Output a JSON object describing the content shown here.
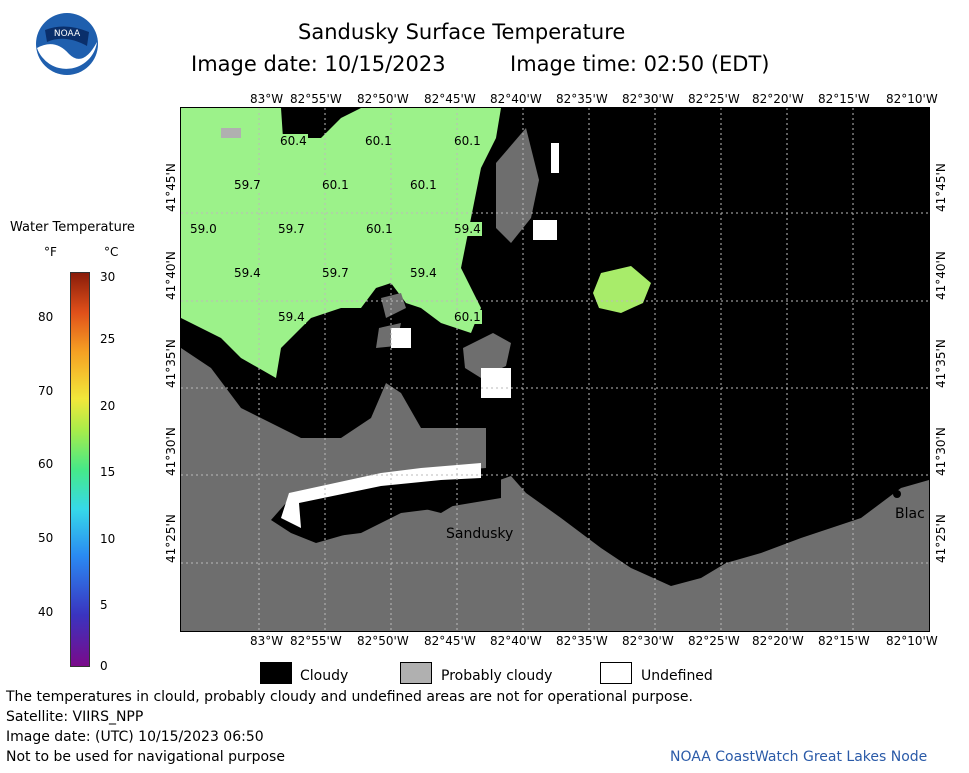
{
  "header": {
    "title": "Sandusky Surface Temperature",
    "image_date": "Image date: 10/15/2023",
    "image_time": "Image time: 02:50 (EDT)"
  },
  "logo": {
    "text": "NOAA"
  },
  "colorbar": {
    "title": "Water Temperature",
    "unit_f": "°F",
    "unit_c": "°C",
    "f_ticks": [
      "80",
      "70",
      "60",
      "50",
      "40"
    ],
    "c_ticks": [
      "30",
      "25",
      "20",
      "15",
      "10",
      "5",
      "0"
    ],
    "f_range": [
      32,
      86
    ],
    "c_range": [
      0,
      30
    ]
  },
  "axes": {
    "lon_top": [
      "83°W",
      "82°55'W",
      "82°50'W",
      "82°45'W",
      "82°40'W",
      "82°35'W",
      "82°30'W",
      "82°25'W",
      "82°20'W",
      "82°15'W",
      "82°10'W"
    ],
    "lon_bottom": [
      "83°W",
      "82°55'W",
      "82°50'W",
      "82°45'W",
      "82°40'W",
      "82°35'W",
      "82°30'W",
      "82°25'W",
      "82°20'W",
      "82°15'W",
      "82°10'W"
    ],
    "lat": [
      "41°45'N",
      "41°40'N",
      "41°35'N",
      "41°30'N",
      "41°25'N"
    ]
  },
  "map": {
    "temperature_labels": [
      "60.4",
      "60.1",
      "60.1",
      "59.7",
      "60.1",
      "60.1",
      "59.0",
      "59.7",
      "60.1",
      "59.4",
      "59.4",
      "59.7",
      "59.4",
      "59.4",
      "60.1"
    ],
    "place_labels": [
      "Sandusky",
      "Blac"
    ],
    "colors": {
      "water": "#9cf28a",
      "cloud": "#000000",
      "land": "#6e6e6e",
      "prob_cloud": "#b0b0b0",
      "undefined": "#ffffff"
    }
  },
  "legend": {
    "cloudy": "Cloudy",
    "probably_cloudy": "Probably cloudy",
    "undefined": "Undefined"
  },
  "footer": {
    "disclaimer": "The temperatures in clould, probably cloudy and undefined areas are not for operational purpose.",
    "satellite": "Satellite: VIIRS_NPP",
    "utc_date": "Image date: (UTC) 10/15/2023  06:50",
    "nav": "Not to be used for navigational purpose",
    "credit": "NOAA CoastWatch Great Lakes Node"
  }
}
